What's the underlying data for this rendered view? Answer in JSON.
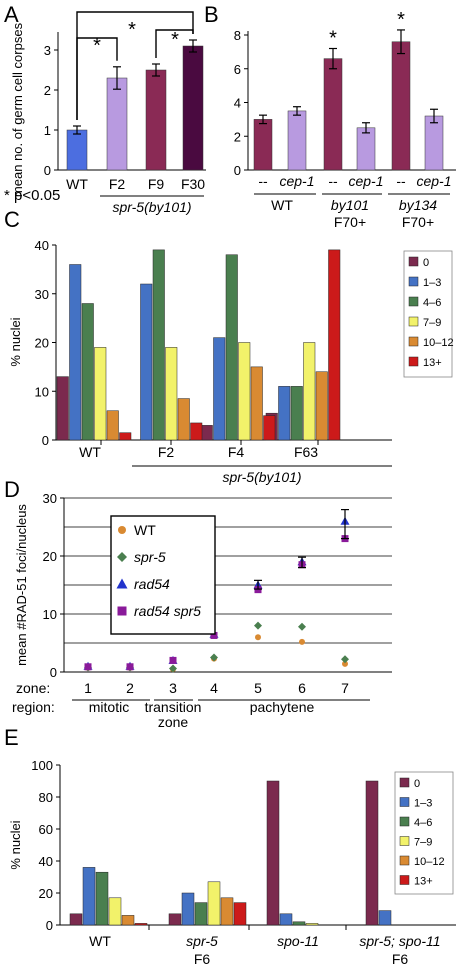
{
  "colors": {
    "c0": "#7b2a4e",
    "c1": "#4472c4",
    "c2": "#4a7f4f",
    "c3": "#f2f26a",
    "c4": "#d98a32",
    "c5": "#cc1a1a",
    "A_wt": "#4c6ee0",
    "A_f2": "#b89ae0",
    "A_f9": "#8a2a55",
    "A_f30": "#4a0a40",
    "B_dark": "#8a2a55",
    "B_light": "#b89ae0"
  },
  "panels": {
    "A": {
      "label": "A"
    },
    "B": {
      "label": "B"
    },
    "C": {
      "label": "C"
    },
    "D": {
      "label": "D"
    },
    "E": {
      "label": "E"
    }
  },
  "significance_note": "* p<0.05",
  "chart_data": [
    {
      "panel": "A",
      "type": "bar",
      "ylabel": "mean no. of germ cell corpses",
      "ylim": [
        0,
        3
      ],
      "yticks": [
        "0",
        "1",
        "2",
        "3"
      ],
      "categories": [
        "WT",
        "F2",
        "F9",
        "F30"
      ],
      "values": [
        1.0,
        2.3,
        2.5,
        3.1
      ],
      "errors": [
        0.1,
        0.28,
        0.15,
        0.15
      ],
      "group_label": "spr-5(by101)",
      "significance": [
        "*",
        "*",
        "*"
      ]
    },
    {
      "panel": "B",
      "type": "bar",
      "ylim": [
        0,
        8
      ],
      "yticks": [
        "0",
        "2",
        "4",
        "6",
        "8"
      ],
      "categories": [
        "--",
        "cep-1",
        "--",
        "cep-1",
        "--",
        "cep-1"
      ],
      "values": [
        3.0,
        3.5,
        6.6,
        2.5,
        7.6,
        3.2
      ],
      "errors": [
        0.25,
        0.25,
        0.6,
        0.3,
        0.7,
        0.4
      ],
      "stars": [
        "",
        "",
        "*",
        "",
        "*",
        ""
      ],
      "groups": [
        "WT",
        "by101",
        "by134"
      ],
      "group_sublabels": [
        "",
        "F70+",
        "F70+"
      ]
    },
    {
      "panel": "C",
      "type": "bar",
      "ylabel": "% nuclei",
      "ylim": [
        0,
        40
      ],
      "yticks": [
        "0",
        "10",
        "20",
        "30",
        "40"
      ],
      "categories": [
        "WT",
        "F2",
        "F4",
        "F63"
      ],
      "group_label": "spr-5(by101)",
      "legend": [
        "0",
        "1–3",
        "4–6",
        "7–9",
        "10–12",
        "13+"
      ],
      "series": [
        {
          "name": "0",
          "values": [
            13,
            0,
            3,
            5.5
          ]
        },
        {
          "name": "1–3",
          "values": [
            36,
            32,
            21,
            11
          ]
        },
        {
          "name": "4–6",
          "values": [
            28,
            39,
            38,
            11
          ]
        },
        {
          "name": "7–9",
          "values": [
            19,
            19,
            20,
            20
          ]
        },
        {
          "name": "10–12",
          "values": [
            6,
            8.5,
            15,
            14
          ]
        },
        {
          "name": "13+",
          "values": [
            1.5,
            3.5,
            5,
            39
          ]
        }
      ]
    },
    {
      "panel": "D",
      "type": "scatter",
      "ylabel": "mean #RAD-51 foci/nucleus",
      "ylim": [
        0,
        30
      ],
      "yticks": [
        "0",
        "10",
        "20",
        "30"
      ],
      "zone_label": "zone:",
      "region_label": "region:",
      "zones": [
        "1",
        "2",
        "3",
        "4",
        "5",
        "6",
        "7"
      ],
      "regions": [
        "mitotic",
        "transition zone",
        "pachytene"
      ],
      "series": [
        {
          "name": "WT",
          "values": [
            0.7,
            0.7,
            0.5,
            2.3,
            6.0,
            5.2,
            1.4
          ]
        },
        {
          "name": "spr-5",
          "values": [
            0.8,
            0.8,
            0.6,
            2.5,
            8.0,
            7.8,
            2.2
          ]
        },
        {
          "name": "rad54",
          "values": [
            1.0,
            1.0,
            2.0,
            6.5,
            15.0,
            19.0,
            26.0
          ]
        },
        {
          "name": "rad54 spr5",
          "values": [
            0.9,
            0.9,
            2.0,
            6.3,
            14.2,
            18.5,
            23.0
          ]
        }
      ]
    },
    {
      "panel": "E",
      "type": "bar",
      "ylabel": "% nuclei",
      "ylim": [
        0,
        100
      ],
      "yticks": [
        "0",
        "20",
        "40",
        "60",
        "80",
        "100"
      ],
      "categories": [
        "WT",
        "spr-5",
        "spo-11",
        "spr-5; spo-11"
      ],
      "category_sublabels": [
        "",
        "F6",
        "",
        "F6"
      ],
      "legend": [
        "0",
        "1–3",
        "4–6",
        "7–9",
        "10–12",
        "13+"
      ],
      "series": [
        {
          "name": "0",
          "values": [
            7,
            7,
            90,
            90
          ]
        },
        {
          "name": "1–3",
          "values": [
            36,
            20,
            7,
            9
          ]
        },
        {
          "name": "4–6",
          "values": [
            33,
            14,
            2,
            0
          ]
        },
        {
          "name": "7–9",
          "values": [
            17,
            27,
            1,
            0
          ]
        },
        {
          "name": "10–12",
          "values": [
            6,
            17,
            0,
            0
          ]
        },
        {
          "name": "13+",
          "values": [
            1,
            14,
            0,
            0
          ]
        }
      ]
    }
  ]
}
